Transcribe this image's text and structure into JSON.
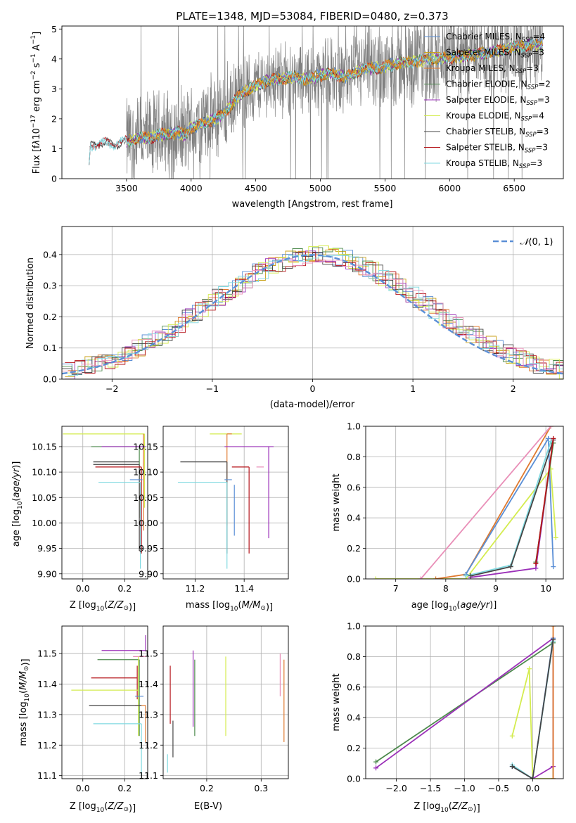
{
  "figure_title": "PLATE=1348, MJD=53084, FIBERID=0480, z=0.373",
  "colors": {
    "chabrier_miles": "#5b8fd6",
    "salpeter_miles": "#c9a21a",
    "kroupa_miles": "#e07a2f",
    "chabrier_elodie": "#4d8a4d",
    "salpeter_elodie": "#9b30b8",
    "kroupa_elodie": "#d4ec4f",
    "chabrier_stelib": "#444444",
    "salpeter_stelib": "#b5141a",
    "kroupa_stelib": "#7fd9e0",
    "pink": "#e98fb8",
    "data": "#808080",
    "normal": "#5b8fd6",
    "grid": "#b0b0b0"
  },
  "chart_data": [
    {
      "id": "spectrum",
      "type": "line",
      "title": "PLATE=1348, MJD=53084, FIBERID=0480, z=0.373",
      "xlabel": "wavelength [Angstrom, rest frame]",
      "ylabel_html": "Flux [f<tspan font-style='italic'>λ</tspan>10<tspan dy='-6' font-size='9'>−17</tspan><tspan dy='6'> erg cm</tspan><tspan dy='-6' font-size='9'>−2</tspan><tspan dy='6'> s</tspan><tspan dy='-6' font-size='9'>−1</tspan><tspan dy='6'> A</tspan><tspan dy='-6' font-size='9'>−1</tspan><tspan dy='6'>]</tspan>",
      "xlim": [
        3000,
        6880
      ],
      "ylim": [
        0,
        5.1
      ],
      "xticks": [
        3500,
        4000,
        4500,
        5000,
        5500,
        6000,
        6500
      ],
      "yticks": [
        0,
        1,
        2,
        3,
        4,
        5
      ],
      "grid": false,
      "legend_position": "top-right",
      "legend": [
        {
          "label": "Chabrier MILES, N",
          "n": "4",
          "color_key": "chabrier_miles"
        },
        {
          "label": "Salpeter MILES, N",
          "n": "3",
          "color_key": "salpeter_miles"
        },
        {
          "label": "Kroupa MILES, N",
          "n": "3",
          "color_key": "kroupa_miles"
        },
        {
          "label": "Chabrier ELODIE, N",
          "n": "2",
          "color_key": "chabrier_elodie"
        },
        {
          "label": "Salpeter ELODIE, N",
          "n": "3",
          "color_key": "salpeter_elodie"
        },
        {
          "label": "Kroupa ELODIE, N",
          "n": "4",
          "color_key": "kroupa_elodie"
        },
        {
          "label": "Chabrier STELIB, N",
          "n": "3",
          "color_key": "chabrier_stelib"
        },
        {
          "label": "Salpeter STELIB, N",
          "n": "3",
          "color_key": "salpeter_stelib"
        },
        {
          "label": "Kroupa STELIB, N",
          "n": "3",
          "color_key": "kroupa_stelib"
        }
      ],
      "legend_subscript": "SSP",
      "model_continuum": {
        "x": [
          3200,
          3220,
          3300,
          3400,
          3500,
          3600,
          3700,
          3800,
          3900,
          3950,
          4000,
          4100,
          4200,
          4300,
          4400,
          4500,
          4600,
          4700,
          4800,
          4900,
          5000,
          5100,
          5200,
          5300,
          5400,
          5500,
          5600,
          5700,
          5800,
          5900,
          6000,
          6100,
          6200,
          6300,
          6400,
          6500,
          6600,
          6720
        ],
        "y": [
          0.7,
          1.1,
          1.2,
          1.15,
          1.25,
          1.35,
          1.4,
          1.5,
          1.55,
          1.45,
          1.7,
          1.85,
          2.0,
          2.4,
          2.9,
          3.1,
          3.3,
          3.35,
          3.4,
          3.3,
          3.45,
          3.5,
          3.4,
          3.6,
          3.7,
          3.75,
          3.85,
          3.9,
          3.95,
          4.0,
          4.05,
          4.1,
          4.15,
          4.2,
          4.3,
          4.4,
          4.45,
          4.5
        ]
      }
    },
    {
      "id": "residuals",
      "type": "line",
      "xlabel": "(data-model)/error",
      "ylabel": "Normed distribution",
      "xlim": [
        -2.5,
        2.5
      ],
      "ylim": [
        0,
        0.49
      ],
      "xticks": [
        -2,
        -1,
        0,
        1,
        2
      ],
      "yticks": [
        0.0,
        0.1,
        0.2,
        0.3,
        0.4
      ],
      "grid": true,
      "legend_position": "top-right",
      "legend": [
        {
          "label": "N(0,1)",
          "color_key": "normal"
        }
      ],
      "series": [
        {
          "name": "N(0,1)",
          "function": "normal",
          "mean": 0,
          "sigma": 1
        }
      ],
      "histograms_note": "9 step histograms, one per model fit"
    },
    {
      "id": "z_vs_age",
      "type": "scatter",
      "xlabel": "Z [log10(Z/Z⊙)]",
      "ylabel": "age  [log10(age/yr)]",
      "xlim": [
        -0.1,
        0.31
      ],
      "ylim": [
        9.89,
        10.19
      ],
      "xticks": [
        0.0,
        0.2
      ],
      "yticks": [
        9.9,
        9.95,
        10.0,
        10.05,
        10.1,
        10.15
      ],
      "grid": true,
      "points": [
        {
          "x": 0.295,
          "y": 10.175,
          "xerr": [
            0.39,
            0.0
          ],
          "yerr": [
            0.145,
            0.0
          ],
          "color_key": "kroupa_elodie"
        },
        {
          "x": 0.29,
          "y": 10.175,
          "xerr": [
            0.0,
            0.0
          ],
          "yerr": [
            0.19,
            0.0
          ],
          "color_key": "kroupa_miles"
        },
        {
          "x": 0.27,
          "y": 10.15,
          "xerr": [
            0.23,
            0.0
          ],
          "yerr": [
            0.14,
            0.0
          ],
          "color_key": "chabrier_elodie"
        },
        {
          "x": 0.3,
          "y": 10.15,
          "xerr": [
            0.21,
            0.0
          ],
          "yerr": [
            0.0,
            0.0
          ],
          "color_key": "salpeter_elodie"
        },
        {
          "x": 0.26,
          "y": 10.12,
          "xerr": [
            0.21,
            0.01
          ],
          "yerr": [
            0.0,
            0.0
          ],
          "color_key": "chabrier_stelib"
        },
        {
          "x": 0.27,
          "y": 10.115,
          "xerr": [
            0.22,
            0.0
          ],
          "yerr": [
            0.17,
            0.0
          ],
          "color_key": "chabrier_stelib"
        },
        {
          "x": 0.28,
          "y": 10.11,
          "xerr": [
            0.22,
            0.0
          ],
          "yerr": [
            0.17,
            0.0
          ],
          "color_key": "salpeter_stelib"
        },
        {
          "x": 0.285,
          "y": 10.085,
          "xerr": [
            0.06,
            0.0
          ],
          "yerr": [
            0.0,
            0.0
          ],
          "color_key": "chabrier_miles"
        },
        {
          "x": 0.275,
          "y": 10.08,
          "xerr": [
            0.2,
            0.0
          ],
          "yerr": [
            0.17,
            0.0
          ],
          "color_key": "kroupa_stelib"
        }
      ]
    },
    {
      "id": "mass_vs_age",
      "type": "scatter",
      "xlabel": "mass [log10(M/M⊙)]",
      "ylabel": "",
      "xlim": [
        11.07,
        11.58
      ],
      "ylim": [
        9.89,
        10.19
      ],
      "xticks": [
        11.2,
        11.4
      ],
      "yticks": [
        9.9,
        9.95,
        10.0,
        10.05,
        10.1,
        10.15
      ],
      "grid": true,
      "points": [
        {
          "x": 11.39,
          "y": 10.175,
          "xerr": [
            0.13,
            0.0
          ],
          "yerr": [
            0.0,
            0.0
          ],
          "color_key": "kroupa_elodie"
        },
        {
          "x": 11.33,
          "y": 10.175,
          "xerr": [
            0.0,
            0.02
          ],
          "yerr": [
            0.18,
            0.0
          ],
          "color_key": "kroupa_miles"
        },
        {
          "x": 11.5,
          "y": 10.15,
          "xerr": [
            0.18,
            0.02
          ],
          "yerr": [
            0.18,
            0.0
          ],
          "color_key": "salpeter_elodie"
        },
        {
          "x": 11.33,
          "y": 10.12,
          "xerr": [
            0.19,
            0.0
          ],
          "yerr": [
            0.18,
            0.0
          ],
          "color_key": "chabrier_stelib"
        },
        {
          "x": 11.42,
          "y": 10.11,
          "xerr": [
            0.07,
            0.0
          ],
          "yerr": [
            0.17,
            0.0
          ],
          "color_key": "salpeter_stelib"
        },
        {
          "x": 11.45,
          "y": 10.11,
          "xerr": [
            0.0,
            0.03
          ],
          "yerr": [
            0.0,
            0.0
          ],
          "color_key": "pink"
        },
        {
          "x": 11.35,
          "y": 10.085,
          "xerr": [
            0.03,
            0.0
          ],
          "yerr": [
            0.0,
            0.0
          ],
          "color_key": "chabrier_miles"
        },
        {
          "x": 11.33,
          "y": 10.08,
          "xerr": [
            0.2,
            0.0
          ],
          "yerr": [
            0.17,
            0.0
          ],
          "color_key": "kroupa_stelib"
        },
        {
          "x": 11.36,
          "y": 10.075,
          "xerr": [
            0.0,
            0.0
          ],
          "yerr": [
            0.1,
            0.0
          ],
          "color_key": "chabrier_miles"
        }
      ]
    },
    {
      "id": "age_vs_mass_weight",
      "type": "line",
      "xlabel": "age  [log10(age/yr)]",
      "ylabel": "mass weight",
      "xlim": [
        6.4,
        10.35
      ],
      "ylim": [
        0,
        1.0
      ],
      "xticks": [
        7,
        8,
        9,
        10
      ],
      "yticks": [
        0.0,
        0.2,
        0.4,
        0.6,
        0.8,
        1.0
      ],
      "grid": true,
      "series": [
        {
          "name": "",
          "color_key": "kroupa_elodie",
          "x": [
            6.6,
            8.4,
            10.1,
            10.2
          ],
          "y": [
            0.0,
            0.0,
            0.72,
            0.27
          ]
        },
        {
          "name": "",
          "color_key": "kroupa_miles",
          "x": [
            7.8,
            8.4,
            10.1
          ],
          "y": [
            0.0,
            0.03,
            1.0
          ]
        },
        {
          "name": "",
          "color_key": "pink",
          "x": [
            7.5,
            10.1
          ],
          "y": [
            0.0,
            1.0
          ]
        },
        {
          "name": "",
          "color_key": "chabrier_miles",
          "x": [
            8.4,
            10.05,
            10.15
          ],
          "y": [
            0.03,
            0.92,
            0.08
          ]
        },
        {
          "name": "",
          "color_key": "salpeter_elodie",
          "x": [
            8.5,
            9.8,
            10.15
          ],
          "y": [
            0.01,
            0.07,
            0.91
          ]
        },
        {
          "name": "",
          "color_key": "kroupa_stelib",
          "x": [
            8.4,
            9.3,
            10.1
          ],
          "y": [
            0.02,
            0.09,
            0.9
          ]
        },
        {
          "name": "",
          "color_key": "chabrier_stelib",
          "x": [
            8.5,
            9.3,
            10.15
          ],
          "y": [
            0.02,
            0.08,
            0.91
          ]
        },
        {
          "name": "",
          "color_key": "chabrier_elodie",
          "x": [
            9.8,
            10.15
          ],
          "y": [
            0.11,
            0.89
          ]
        },
        {
          "name": "",
          "color_key": "salpeter_stelib",
          "x": [
            9.8,
            10.15
          ],
          "y": [
            0.1,
            0.92
          ]
        }
      ]
    },
    {
      "id": "z_vs_mass",
      "type": "scatter",
      "xlabel": "Z [log10(Z/Z⊙)]",
      "ylabel": "mass [log10(M/M⊙)]",
      "xlim": [
        -0.1,
        0.31
      ],
      "ylim": [
        11.09,
        11.59
      ],
      "xticks": [
        0.0,
        0.2
      ],
      "yticks": [
        11.1,
        11.2,
        11.3,
        11.4,
        11.5
      ],
      "grid": true,
      "points": [
        {
          "x": 0.3,
          "y": 11.51,
          "xerr": [
            0.21,
            0.0
          ],
          "yerr": [
            0.0,
            0.05
          ],
          "color_key": "salpeter_elodie"
        },
        {
          "x": 0.3,
          "y": 11.49,
          "xerr": [
            0.06,
            0.0
          ],
          "yerr": [
            0.0,
            0.0
          ],
          "color_key": "pink"
        },
        {
          "x": 0.27,
          "y": 11.48,
          "xerr": [
            0.2,
            0.0
          ],
          "yerr": [
            0.25,
            0.0
          ],
          "color_key": "chabrier_elodie"
        },
        {
          "x": 0.26,
          "y": 11.42,
          "xerr": [
            0.22,
            0.0
          ],
          "yerr": [
            0.07,
            0.04
          ],
          "color_key": "salpeter_stelib"
        },
        {
          "x": 0.265,
          "y": 11.38,
          "xerr": [
            0.32,
            0.0
          ],
          "yerr": [
            0.15,
            0.11
          ],
          "color_key": "kroupa_elodie"
        },
        {
          "x": 0.29,
          "y": 11.36,
          "xerr": [
            0.04,
            0.0
          ],
          "yerr": [
            0.0,
            0.0
          ],
          "color_key": "chabrier_miles"
        },
        {
          "x": 0.3,
          "y": 11.33,
          "xerr": [
            0.05,
            0.0
          ],
          "yerr": [
            0.12,
            0.0
          ],
          "color_key": "kroupa_miles"
        },
        {
          "x": 0.27,
          "y": 11.33,
          "xerr": [
            0.24,
            0.01
          ],
          "yerr": [
            0.0,
            0.0
          ],
          "color_key": "chabrier_stelib"
        },
        {
          "x": 0.28,
          "y": 11.27,
          "xerr": [
            0.23,
            0.0
          ],
          "yerr": [
            0.17,
            0.0
          ],
          "color_key": "kroupa_stelib"
        }
      ]
    },
    {
      "id": "ebv_vs_mass",
      "type": "scatter",
      "xlabel": "E(B-V)",
      "ylabel": "",
      "xlim": [
        0.12,
        0.35
      ],
      "ylim": [
        11.09,
        11.59
      ],
      "xticks": [
        0.2,
        0.3
      ],
      "yticks": [
        11.1,
        11.2,
        11.3,
        11.4,
        11.5
      ],
      "grid": true,
      "points": [
        {
          "x": 0.133,
          "y": 11.36,
          "xerr": [
            0.0,
            0.0
          ],
          "yerr": [
            0.09,
            0.1
          ],
          "color_key": "salpeter_stelib"
        },
        {
          "x": 0.138,
          "y": 11.2,
          "xerr": [
            0.0,
            0.0
          ],
          "yerr": [
            0.04,
            0.08
          ],
          "color_key": "chabrier_stelib"
        },
        {
          "x": 0.128,
          "y": 11.17,
          "xerr": [
            0.0,
            0.0
          ],
          "yerr": [
            0.06,
            0.0
          ],
          "color_key": "kroupa_stelib"
        },
        {
          "x": 0.175,
          "y": 11.39,
          "xerr": [
            0.0,
            0.0
          ],
          "yerr": [
            0.13,
            0.12
          ],
          "color_key": "salpeter_elodie"
        },
        {
          "x": 0.178,
          "y": 11.35,
          "xerr": [
            0.0,
            0.0
          ],
          "yerr": [
            0.12,
            0.13
          ],
          "color_key": "chabrier_elodie"
        },
        {
          "x": 0.235,
          "y": 11.36,
          "xerr": [
            0.0,
            0.0
          ],
          "yerr": [
            0.13,
            0.13
          ],
          "color_key": "kroupa_elodie"
        },
        {
          "x": 0.335,
          "y": 11.44,
          "xerr": [
            0.0,
            0.0
          ],
          "yerr": [
            0.08,
            0.06
          ],
          "color_key": "pink"
        },
        {
          "x": 0.342,
          "y": 11.35,
          "xerr": [
            0.0,
            0.0
          ],
          "yerr": [
            0.14,
            0.13
          ],
          "color_key": "kroupa_miles"
        }
      ]
    },
    {
      "id": "z_vs_mass_weight",
      "type": "line",
      "xlabel": "Z [log10(Z/Z⊙)]",
      "ylabel": "mass weight",
      "xlim": [
        -2.45,
        0.45
      ],
      "ylim": [
        0,
        1.0
      ],
      "xticks": [
        -2.0,
        -1.5,
        -1.0,
        -0.5,
        0.0
      ],
      "yticks": [
        0.0,
        0.2,
        0.4,
        0.6,
        0.8,
        1.0
      ],
      "grid": true,
      "series": [
        {
          "name": "",
          "color_key": "chabrier_elodie",
          "x": [
            -2.3,
            0.3,
            0.3
          ],
          "y": [
            0.11,
            0.89,
            0.0
          ]
        },
        {
          "name": "",
          "color_key": "salpeter_elodie",
          "x": [
            -2.3,
            0.3,
            0.3,
            0.0
          ],
          "y": [
            0.07,
            0.92,
            0.08,
            0.0
          ]
        },
        {
          "name": "",
          "color_key": "kroupa_elodie",
          "x": [
            -0.3,
            -0.05,
            0.0,
            0.3
          ],
          "y": [
            0.28,
            0.72,
            0.0,
            0.0
          ]
        },
        {
          "name": "",
          "color_key": "chabrier_miles",
          "x": [
            -0.3,
            0.0,
            0.3
          ],
          "y": [
            0.08,
            0.0,
            0.92
          ]
        },
        {
          "name": "",
          "color_key": "kroupa_miles",
          "x": [
            0.3,
            0.3
          ],
          "y": [
            0.0,
            1.0
          ]
        },
        {
          "name": "",
          "color_key": "kroupa_stelib",
          "x": [
            -0.3,
            0.0,
            0.3
          ],
          "y": [
            0.09,
            0.0,
            0.9
          ]
        },
        {
          "name": "",
          "color_key": "chabrier_stelib",
          "x": [
            -0.3,
            0.0,
            0.3
          ],
          "y": [
            0.08,
            0.0,
            0.91
          ]
        }
      ]
    }
  ]
}
